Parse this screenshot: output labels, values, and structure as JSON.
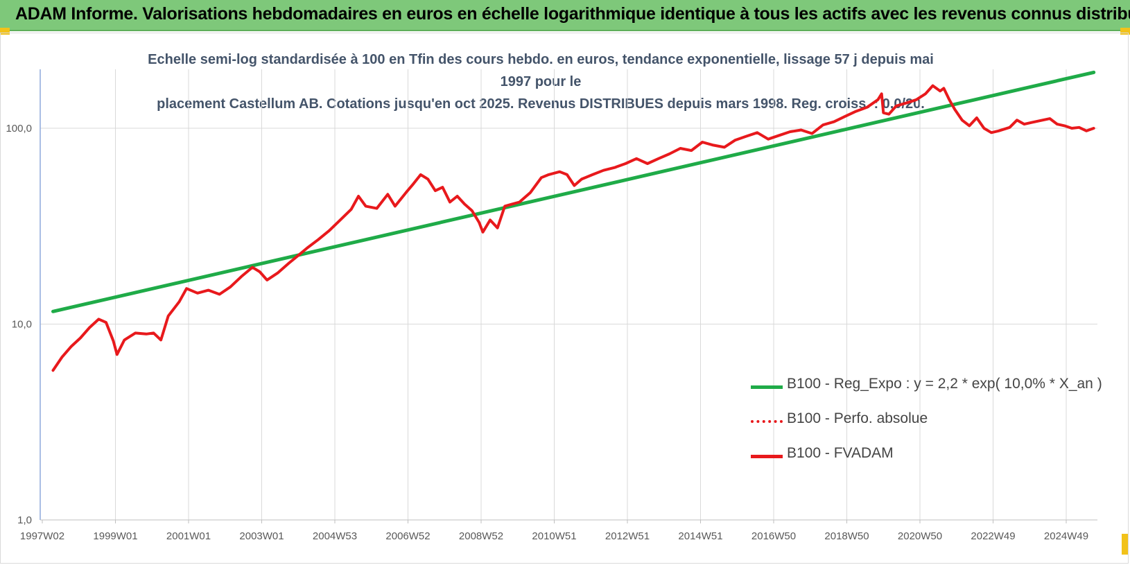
{
  "header": {
    "title": "ADAM Informe. Valorisations hebdomadaires en euros en échelle logarithmique identique à tous les actifs avec les revenus connus distribués"
  },
  "colors": {
    "header_bg": "#7ec87a",
    "accent_corner": "#f2c21a",
    "regression": "#1fab48",
    "perfo": "#e8191c",
    "fvadam": "#e8191c",
    "grid": "#d9d9d9",
    "axis": "#8ea9db"
  },
  "chart_data": {
    "type": "line",
    "title_lines": [
      "Echelle semi-log standardisée à 100 en Tfin des cours hebdo. en euros, tendance exponentielle, lissage 57 j depuis mai 1997 pour le",
      "placement Castellum AB. Cotations jusqu'en oct 2025. Revenus DISTRIBUES depuis mars 1998. Reg. croiss. : 0,0/20."
    ],
    "y_scale": "log",
    "ylim": [
      1,
      200
    ],
    "y_ticks": [
      {
        "value": 1,
        "label": "1,0"
      },
      {
        "value": 10,
        "label": "10,0"
      },
      {
        "value": 100,
        "label": "100,0"
      }
    ],
    "x_tick_labels": [
      "1997W02",
      "1999W01",
      "2001W01",
      "2003W01",
      "2004W53",
      "2006W52",
      "2008W52",
      "2010W51",
      "2012W51",
      "2014W51",
      "2016W50",
      "2018W50",
      "2020W50",
      "2022W49",
      "2024W49"
    ],
    "grid": true,
    "legend_position": "bottom-right",
    "series": [
      {
        "name": "B100 - Reg_Expo : y = 2,2 * exp( 10,0% *  X_an )",
        "style": "solid",
        "points": [
          [
            1997.35,
            11.6
          ],
          [
            2025.8,
            193
          ]
        ]
      },
      {
        "name": "B100 - Perfo. absolue",
        "style": "dotted",
        "points": []
      },
      {
        "name": "B100 - FVADAM",
        "style": "solid",
        "points": [
          [
            1997.35,
            5.8
          ],
          [
            1997.6,
            6.8
          ],
          [
            1997.85,
            7.7
          ],
          [
            1998.1,
            8.5
          ],
          [
            1998.35,
            9.6
          ],
          [
            1998.6,
            10.6
          ],
          [
            1998.8,
            10.2
          ],
          [
            1999.0,
            8.2
          ],
          [
            1999.1,
            7.0
          ],
          [
            1999.3,
            8.3
          ],
          [
            1999.6,
            9.0
          ],
          [
            1999.9,
            8.9
          ],
          [
            2000.1,
            9.0
          ],
          [
            2000.3,
            8.3
          ],
          [
            2000.5,
            11.0
          ],
          [
            2000.8,
            13.0
          ],
          [
            2001.0,
            15.2
          ],
          [
            2001.3,
            14.4
          ],
          [
            2001.6,
            14.9
          ],
          [
            2001.9,
            14.2
          ],
          [
            2002.2,
            15.5
          ],
          [
            2002.5,
            17.5
          ],
          [
            2002.8,
            19.5
          ],
          [
            2003.0,
            18.5
          ],
          [
            2003.2,
            16.8
          ],
          [
            2003.5,
            18.3
          ],
          [
            2003.8,
            20.5
          ],
          [
            2004.0,
            22.0
          ],
          [
            2004.3,
            24.5
          ],
          [
            2004.6,
            27.0
          ],
          [
            2004.9,
            30.0
          ],
          [
            2005.2,
            34.0
          ],
          [
            2005.5,
            38.5
          ],
          [
            2005.7,
            45.0
          ],
          [
            2005.9,
            40.0
          ],
          [
            2006.2,
            39.0
          ],
          [
            2006.5,
            46.0
          ],
          [
            2006.7,
            40.0
          ],
          [
            2007.0,
            47.0
          ],
          [
            2007.2,
            52.0
          ],
          [
            2007.4,
            58.0
          ],
          [
            2007.6,
            55.0
          ],
          [
            2007.8,
            48.0
          ],
          [
            2008.0,
            50.0
          ],
          [
            2008.2,
            42.0
          ],
          [
            2008.4,
            45.0
          ],
          [
            2008.6,
            41.0
          ],
          [
            2008.8,
            38.0
          ],
          [
            2009.0,
            33.0
          ],
          [
            2009.1,
            29.5
          ],
          [
            2009.3,
            34.0
          ],
          [
            2009.5,
            31.0
          ],
          [
            2009.7,
            40.0
          ],
          [
            2009.9,
            41.0
          ],
          [
            2010.1,
            42.0
          ],
          [
            2010.4,
            47.0
          ],
          [
            2010.7,
            56.0
          ],
          [
            2010.9,
            58.0
          ],
          [
            2011.2,
            60.0
          ],
          [
            2011.4,
            58.0
          ],
          [
            2011.6,
            51.0
          ],
          [
            2011.8,
            55.0
          ],
          [
            2012.1,
            58.0
          ],
          [
            2012.4,
            61.0
          ],
          [
            2012.7,
            63.0
          ],
          [
            2013.0,
            66.0
          ],
          [
            2013.3,
            70.0
          ],
          [
            2013.6,
            66.0
          ],
          [
            2013.9,
            70.0
          ],
          [
            2014.2,
            74.0
          ],
          [
            2014.5,
            79.0
          ],
          [
            2014.8,
            77.0
          ],
          [
            2015.1,
            85.0
          ],
          [
            2015.4,
            82.0
          ],
          [
            2015.7,
            80.0
          ],
          [
            2016.0,
            87.0
          ],
          [
            2016.3,
            91.0
          ],
          [
            2016.6,
            95.0
          ],
          [
            2016.9,
            88.0
          ],
          [
            2017.2,
            92.0
          ],
          [
            2017.5,
            96.0
          ],
          [
            2017.8,
            98.0
          ],
          [
            2018.1,
            94.0
          ],
          [
            2018.4,
            104.0
          ],
          [
            2018.7,
            108.0
          ],
          [
            2019.0,
            115.0
          ],
          [
            2019.3,
            122.0
          ],
          [
            2019.6,
            128.0
          ],
          [
            2019.9,
            140.0
          ],
          [
            2020.0,
            150.0
          ],
          [
            2020.05,
            120.0
          ],
          [
            2020.2,
            118.0
          ],
          [
            2020.4,
            130.0
          ],
          [
            2020.7,
            135.0
          ],
          [
            2020.95,
            140.0
          ],
          [
            2021.2,
            150.0
          ],
          [
            2021.4,
            165.0
          ],
          [
            2021.6,
            155.0
          ],
          [
            2021.7,
            160.0
          ],
          [
            2021.85,
            140.0
          ],
          [
            2022.0,
            125.0
          ],
          [
            2022.2,
            110.0
          ],
          [
            2022.4,
            103.0
          ],
          [
            2022.6,
            113.0
          ],
          [
            2022.8,
            100.0
          ],
          [
            2023.0,
            95.0
          ],
          [
            2023.2,
            97.0
          ],
          [
            2023.5,
            101.0
          ],
          [
            2023.7,
            110.0
          ],
          [
            2023.9,
            105.0
          ],
          [
            2024.1,
            107.0
          ],
          [
            2024.4,
            110.0
          ],
          [
            2024.6,
            112.0
          ],
          [
            2024.8,
            105.0
          ],
          [
            2025.0,
            103.0
          ],
          [
            2025.2,
            100.0
          ],
          [
            2025.4,
            101.0
          ],
          [
            2025.6,
            97.0
          ],
          [
            2025.8,
            100.0
          ]
        ]
      }
    ]
  }
}
